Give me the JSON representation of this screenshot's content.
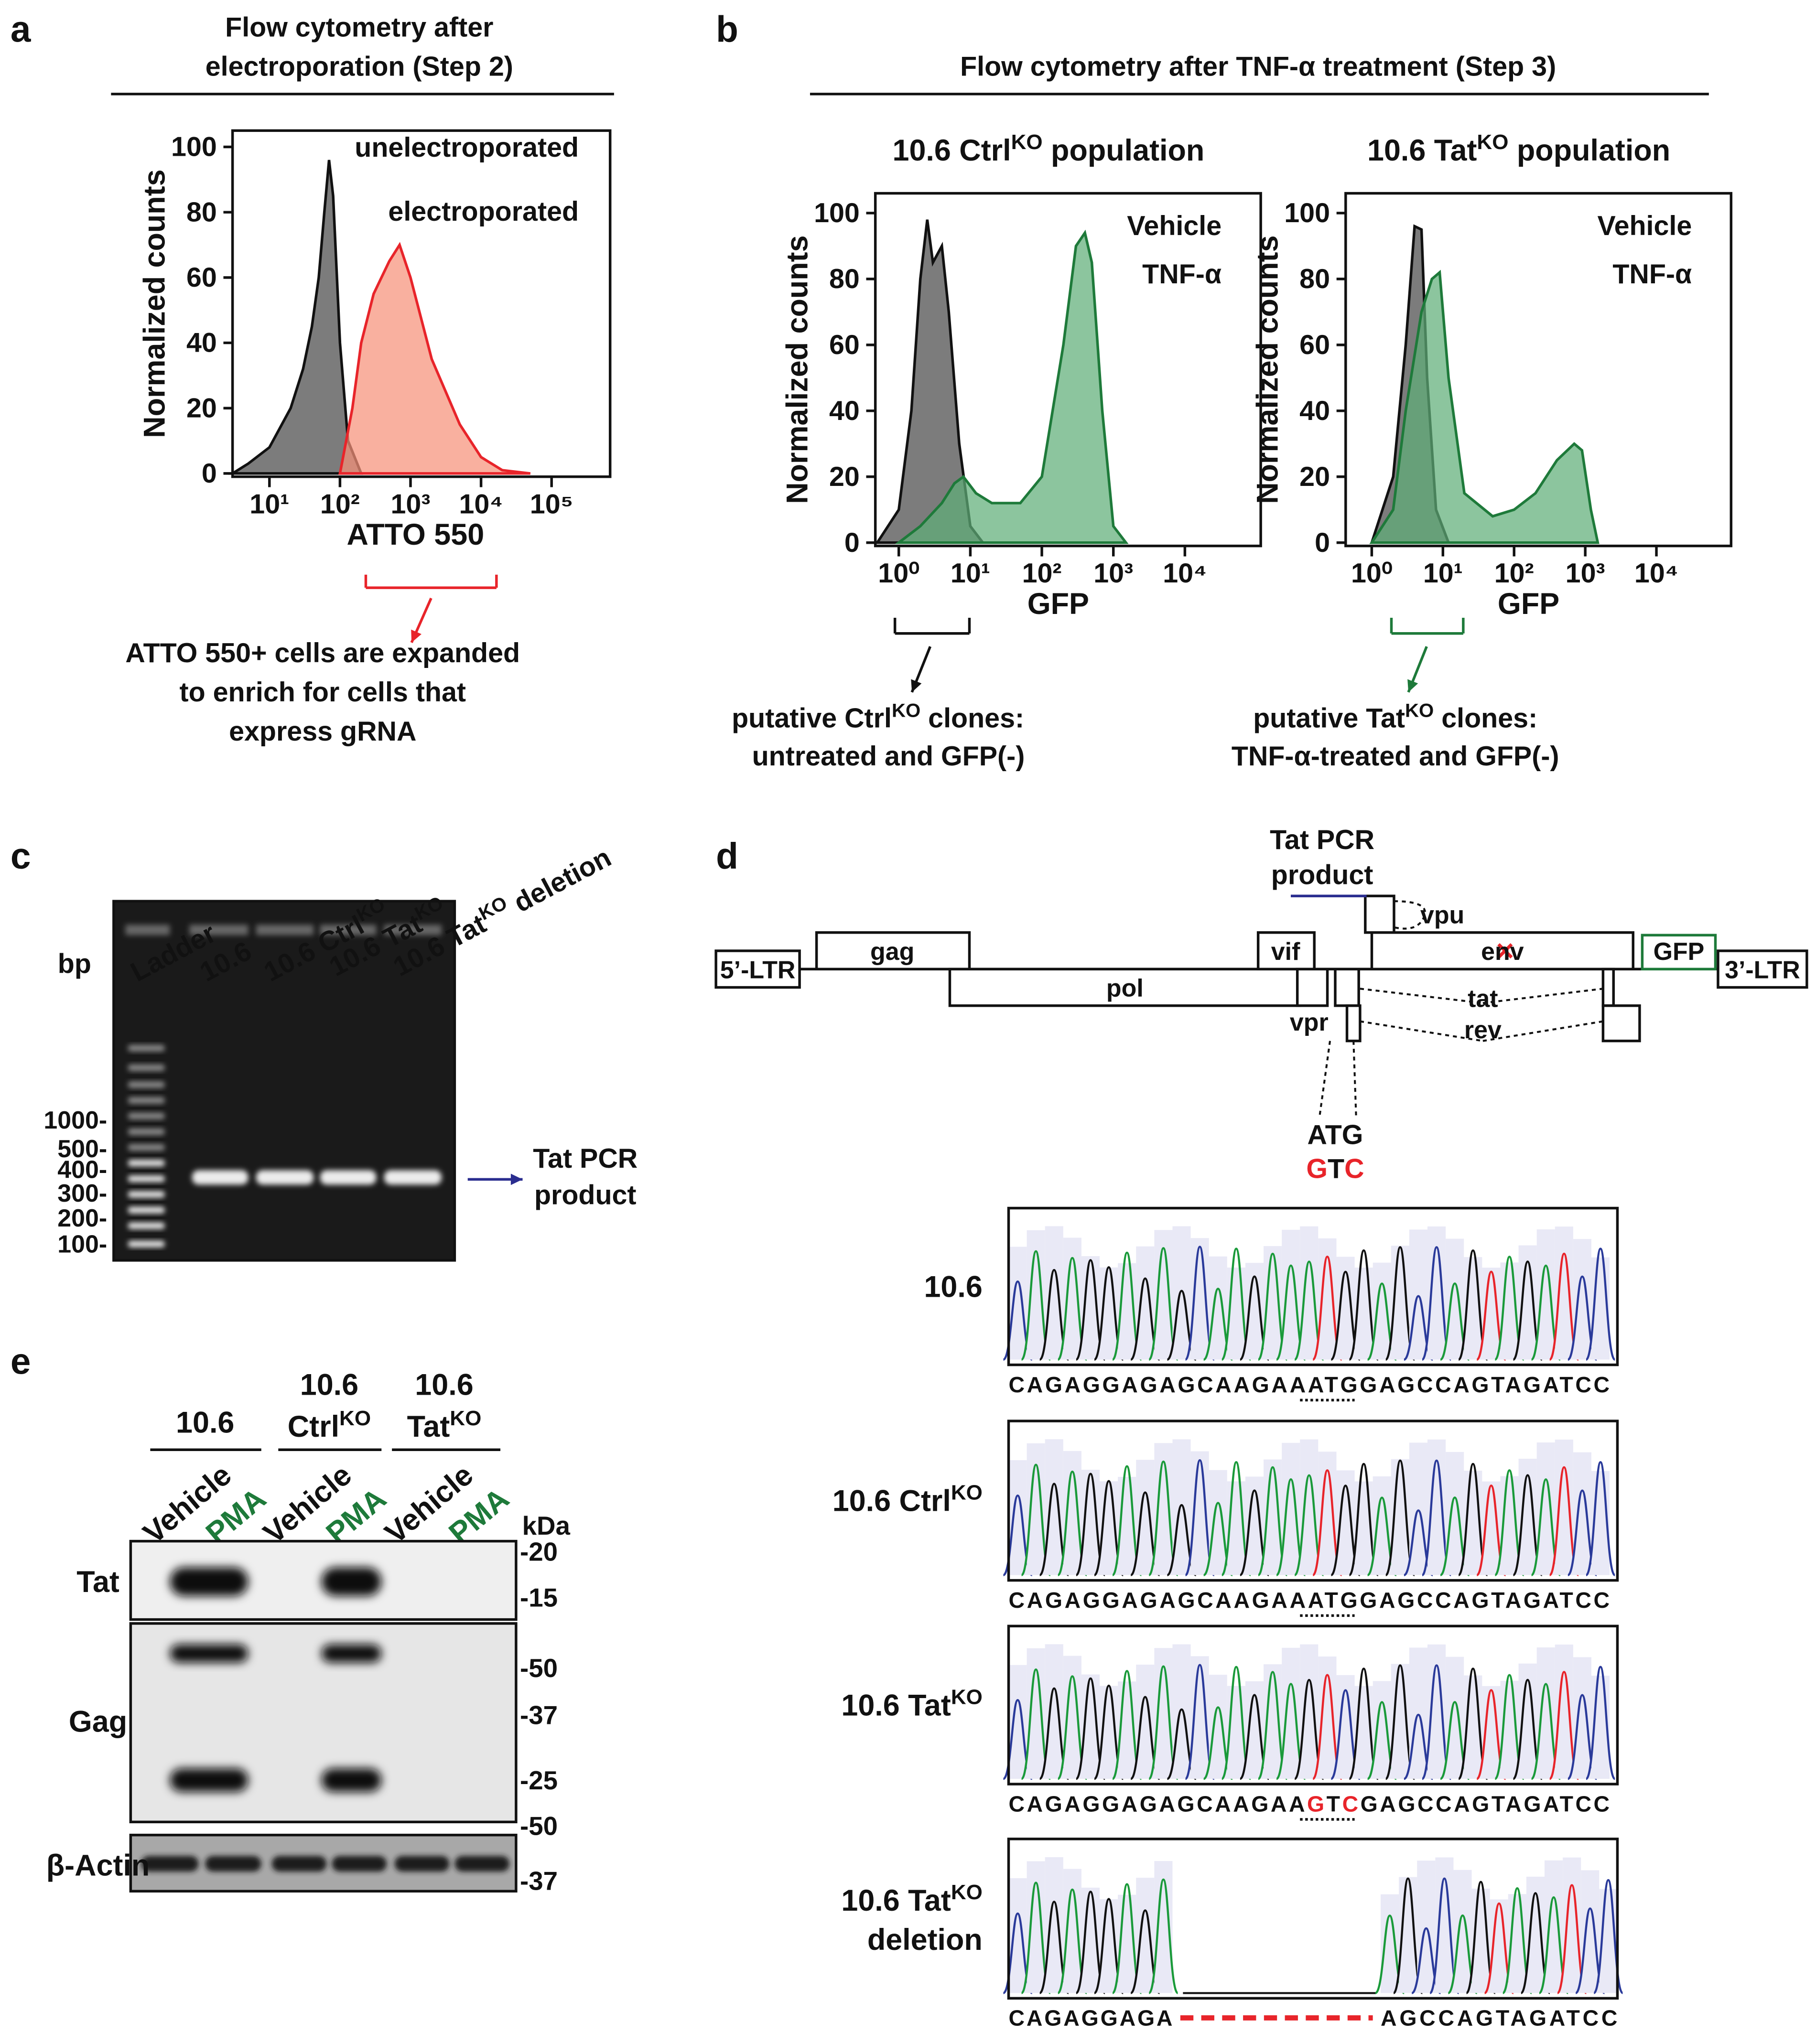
{
  "panel_labels": [
    "a",
    "b",
    "c",
    "d",
    "e"
  ],
  "panel_a": {
    "header": [
      "Flow cytometry after",
      "electroporation (Step 2)"
    ],
    "note": [
      "ATTO 550+ cells are expanded",
      "to enrich for cells that",
      "express gRNA"
    ]
  },
  "panel_b": {
    "header": "Flow cytometry after TNF-α treatment (Step 3)",
    "note_ctrl": [
      [
        "putative Ctrl",
        {
          "sup": "KO"
        },
        " clones:"
      ],
      [
        "untreated and GFP(-)"
      ]
    ],
    "note_tat": [
      [
        "putative Tat",
        {
          "sup": "KO"
        },
        " clones:"
      ],
      [
        "TNF-α-treated and GFP(-)"
      ]
    ]
  },
  "chart_data": [
    {
      "type": "area",
      "log_x": true,
      "xlim": [
        3,
        676000
      ],
      "ylim": [
        -1,
        105
      ],
      "xlabel": "ATTO 550",
      "xlabel_color": "#e8242a",
      "ylabel": "Normalized counts",
      "xticks": [
        {
          "value": 10,
          "label": "10¹"
        },
        {
          "value": 100,
          "label": "10²"
        },
        {
          "value": 1000,
          "label": "10³"
        },
        {
          "value": 10000,
          "label": "10⁴"
        },
        {
          "value": 100000,
          "label": "10⁵"
        }
      ],
      "yticks": [
        0,
        20,
        40,
        60,
        80,
        100
      ],
      "series": [
        {
          "name": "unelectroporated",
          "color": "#111111",
          "fill": "#4a4a4a",
          "x": [
            3,
            5,
            10,
            20,
            30,
            40,
            50,
            60,
            70,
            80,
            100,
            130,
            200
          ],
          "values": [
            0,
            3,
            8,
            20,
            32,
            45,
            60,
            80,
            96,
            85,
            40,
            10,
            0
          ]
        },
        {
          "name": "electroporated",
          "color": "#e8242a",
          "fill": "#f7917a",
          "x": [
            100,
            150,
            200,
            300,
            500,
            700,
            1000,
            2000,
            5000,
            10000,
            20000,
            50000
          ],
          "values": [
            0,
            20,
            40,
            55,
            65,
            70,
            60,
            35,
            15,
            5,
            1,
            0
          ]
        }
      ]
    },
    {
      "type": "area",
      "log_x": true,
      "xlim": [
        0.47,
        115000
      ],
      "ylim": [
        -1,
        106
      ],
      "title": [
        "10.6 Ctrl",
        {
          "sup": "KO"
        },
        " population"
      ],
      "xlabel": "GFP",
      "xlabel_color": "#1e7a3a",
      "ylabel": "Normalized counts",
      "xticks": [
        {
          "value": 1,
          "label": "10⁰"
        },
        {
          "value": 10,
          "label": "10¹"
        },
        {
          "value": 100,
          "label": "10²"
        },
        {
          "value": 1000,
          "label": "10³"
        },
        {
          "value": 10000,
          "label": "10⁴"
        }
      ],
      "yticks": [
        0,
        20,
        40,
        60,
        80,
        100
      ],
      "series": [
        {
          "name": "Vehicle",
          "color": "#111111",
          "fill": "#4a4a4a",
          "x": [
            0.5,
            1,
            1.5,
            2,
            2.5,
            3,
            4,
            5,
            7,
            10,
            15
          ],
          "values": [
            0,
            10,
            40,
            80,
            98,
            85,
            90,
            70,
            30,
            5,
            0
          ]
        },
        {
          "name": "TNF-α",
          "color": "#1e7a3a",
          "fill": "#5fae78",
          "x": [
            1,
            2,
            4,
            6,
            8,
            12,
            20,
            50,
            100,
            200,
            300,
            400,
            500,
            700,
            1000,
            1500
          ],
          "values": [
            0,
            5,
            12,
            18,
            20,
            15,
            12,
            12,
            20,
            60,
            90,
            94,
            85,
            40,
            5,
            0
          ]
        }
      ]
    },
    {
      "type": "area",
      "log_x": true,
      "xlim": [
        0.43,
        112000
      ],
      "ylim": [
        -1,
        106
      ],
      "title": [
        "10.6 Tat",
        {
          "sup": "KO"
        },
        " population"
      ],
      "xlabel": "GFP",
      "xlabel_color": "#1e7a3a",
      "ylabel": "Normalized counts",
      "xticks": [
        {
          "value": 1,
          "label": "10⁰"
        },
        {
          "value": 10,
          "label": "10¹"
        },
        {
          "value": 100,
          "label": "10²"
        },
        {
          "value": 1000,
          "label": "10³"
        },
        {
          "value": 10000,
          "label": "10⁴"
        }
      ],
      "yticks": [
        0,
        20,
        40,
        60,
        80,
        100
      ],
      "series": [
        {
          "name": "Vehicle",
          "color": "#111111",
          "fill": "#4a4a4a",
          "x": [
            1,
            2,
            3,
            4,
            5,
            6,
            8,
            12
          ],
          "values": [
            0,
            20,
            60,
            96,
            95,
            50,
            10,
            0
          ]
        },
        {
          "name": "TNF-α",
          "color": "#1e7a3a",
          "fill": "#5fae78",
          "x": [
            1,
            2,
            3,
            5,
            7,
            9,
            12,
            20,
            50,
            100,
            200,
            400,
            700,
            900,
            1200,
            1500
          ],
          "values": [
            0,
            10,
            40,
            70,
            80,
            82,
            50,
            15,
            8,
            10,
            15,
            25,
            30,
            28,
            10,
            0
          ]
        }
      ]
    }
  ],
  "panel_c": {
    "unit": "bp",
    "lanes": [
      [
        "Ladder"
      ],
      [
        "10.6"
      ],
      [
        "10.6 Ctrl",
        {
          "sup": "KO"
        }
      ],
      [
        "10.6 Tat",
        {
          "sup": "KO"
        }
      ],
      [
        "10.6 Tat",
        {
          "sup": "KO"
        },
        " deletion"
      ]
    ],
    "ladder": [
      "1000-",
      "500-",
      "400-",
      "300-",
      "200-",
      "100-"
    ],
    "product": [
      "Tat PCR",
      "product"
    ]
  },
  "panel_d": {
    "genes": [
      "5’-LTR",
      "gag",
      "pol",
      "vif",
      "vpr",
      "vpu",
      "env",
      "tat",
      "rev",
      "GFP",
      "3’-LTR"
    ],
    "product": [
      "Tat PCR",
      "product"
    ],
    "codon": [
      "ATG"
    ],
    "mutant": [
      {
        "t": "G",
        "color": "#e8242a"
      },
      "T",
      {
        "t": "C",
        "color": "#e8242a"
      }
    ],
    "samples": [
      {
        "name": [
          [
            "10.6"
          ]
        ],
        "seq": [
          [
            "CAGAGGAGAGCAAGAAATGGAGCCAGTAGATCC"
          ]
        ]
      },
      {
        "name": [
          [
            "10.6 Ctrl",
            {
              "sup": "KO"
            }
          ]
        ],
        "seq": [
          [
            "CAGAGGAGAGCAAGAAATGGAGCCAGTAGATCC"
          ]
        ]
      },
      {
        "name": [
          [
            "10.6 Tat",
            {
              "sup": "KO"
            }
          ]
        ],
        "seq": [
          [
            "CAGAGGAGAGCAAGAA",
            {
              "t": "G",
              "color": "#e8242a"
            },
            "T",
            {
              "t": "C",
              "color": "#e8242a"
            },
            "GAGCCAGTAGATCC"
          ]
        ]
      },
      {
        "name": [
          [
            "10.6 Tat",
            {
              "sup": "KO"
            }
          ],
          [
            "deletion"
          ]
        ],
        "seq": [
          [
            "CAGAGGAGA"
          ],
          [
            "AGCCAGTAGATCC"
          ]
        ]
      }
    ]
  },
  "panel_e": {
    "groups": [
      [
        [
          "10.6"
        ]
      ],
      [
        [
          "10.6"
        ],
        [
          "Ctrl",
          {
            "sup": "KO"
          }
        ]
      ],
      [
        [
          "10.6"
        ],
        [
          "Tat",
          {
            "sup": "KO"
          }
        ]
      ]
    ],
    "lanes": [
      [
        {
          "t": "Vehicle",
          "color": "#111111"
        }
      ],
      [
        {
          "t": "PMA",
          "color": "#1e7a3a"
        }
      ],
      [
        {
          "t": "Vehicle",
          "color": "#111111"
        }
      ],
      [
        {
          "t": "PMA",
          "color": "#1e7a3a"
        }
      ],
      [
        {
          "t": "Vehicle",
          "color": "#111111"
        }
      ],
      [
        {
          "t": "PMA",
          "color": "#1e7a3a"
        }
      ]
    ],
    "unit": "kDa",
    "rows": [
      "Tat",
      "Gag",
      "β-Actin"
    ],
    "markers": [
      "-20",
      "-15",
      "-50",
      "-37",
      "-25",
      "-50",
      "-37"
    ]
  }
}
